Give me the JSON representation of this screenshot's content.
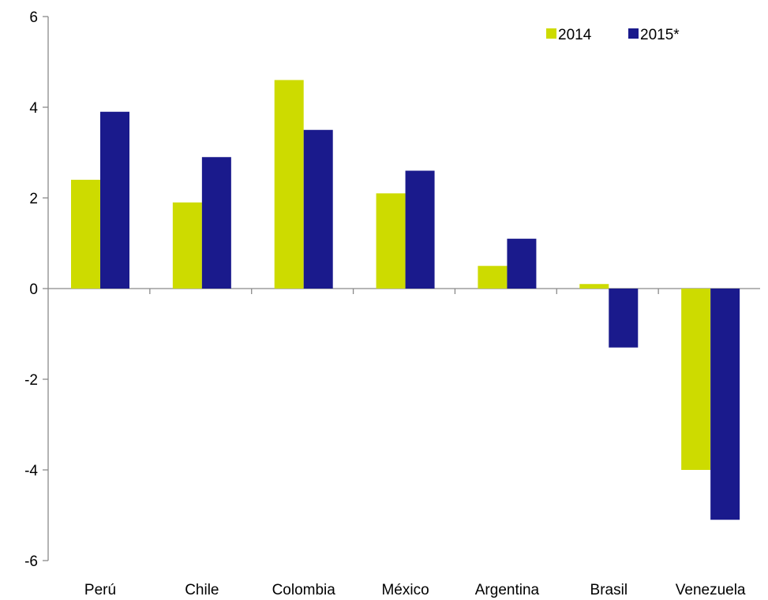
{
  "chart_data": {
    "type": "bar",
    "title": "",
    "xlabel": "",
    "ylabel": "",
    "categories": [
      "Perú",
      "Chile",
      "Colombia",
      "México",
      "Argentina",
      "Brasil",
      "Venezuela"
    ],
    "series": [
      {
        "name": "2014",
        "color": "#cddb00",
        "values": [
          2.4,
          1.9,
          4.6,
          2.1,
          0.5,
          0.1,
          -4.0
        ]
      },
      {
        "name": "2015*",
        "color": "#1a1a8c",
        "values": [
          3.9,
          2.9,
          3.5,
          2.6,
          1.1,
          -1.3,
          -5.1
        ]
      }
    ],
    "ylim": [
      -6,
      6
    ],
    "yticks": [
      -6,
      -4,
      -2,
      0,
      2,
      4,
      6
    ],
    "grid": false,
    "legend_position": "top-right"
  }
}
